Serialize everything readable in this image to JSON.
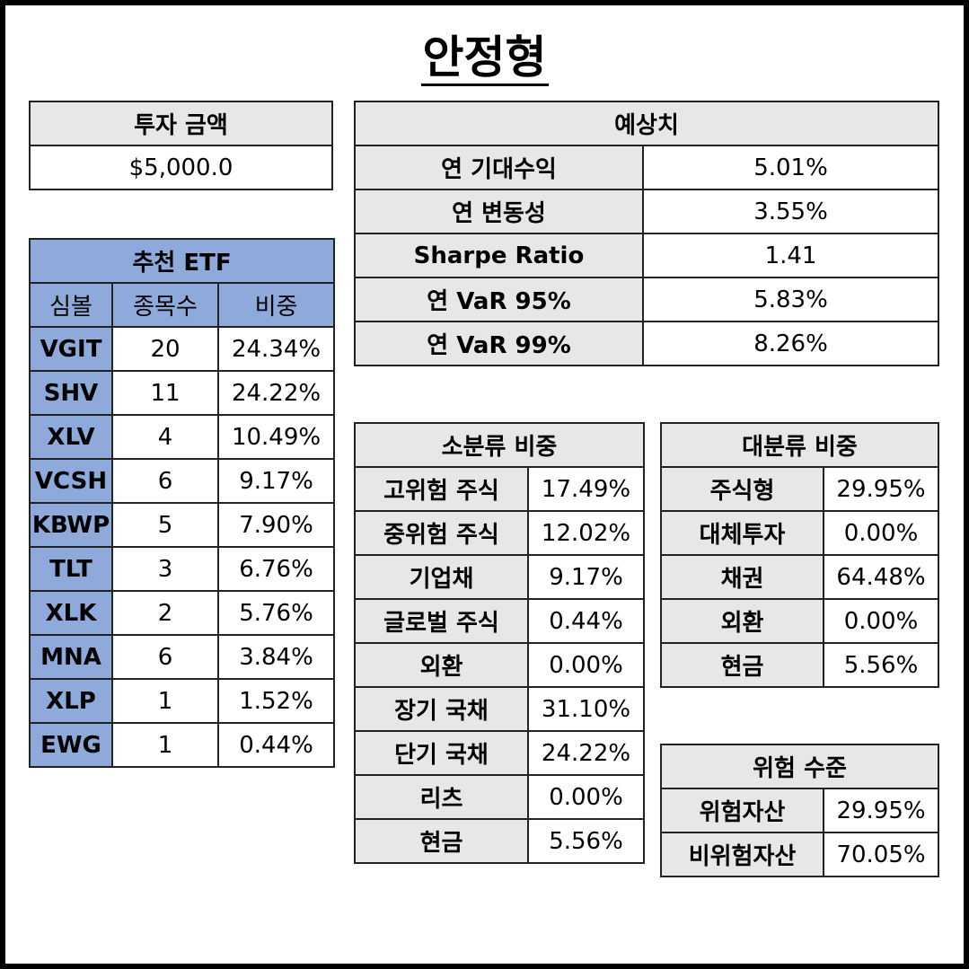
{
  "title": "안정형",
  "investment": {
    "header": "투자 금액",
    "value": "$5,000.0"
  },
  "etf": {
    "header": "추천 ETF",
    "columns": [
      "심볼",
      "종목수",
      "비중"
    ],
    "rows": [
      {
        "symbol": "VGIT",
        "count": "20",
        "weight": "24.34%"
      },
      {
        "symbol": "SHV",
        "count": "11",
        "weight": "24.22%"
      },
      {
        "symbol": "XLV",
        "count": "4",
        "weight": "10.49%"
      },
      {
        "symbol": "VCSH",
        "count": "6",
        "weight": "9.17%"
      },
      {
        "symbol": "KBWP",
        "count": "5",
        "weight": "7.90%"
      },
      {
        "symbol": "TLT",
        "count": "3",
        "weight": "6.76%"
      },
      {
        "symbol": "XLK",
        "count": "2",
        "weight": "5.76%"
      },
      {
        "symbol": "MNA",
        "count": "6",
        "weight": "3.84%"
      },
      {
        "symbol": "XLP",
        "count": "1",
        "weight": "1.52%"
      },
      {
        "symbol": "EWG",
        "count": "1",
        "weight": "0.44%"
      }
    ]
  },
  "expected": {
    "header": "예상치",
    "rows": [
      {
        "label": "연 기대수익",
        "value": "5.01%"
      },
      {
        "label": "연 변동성",
        "value": "3.55%"
      },
      {
        "label": "Sharpe Ratio",
        "value": "1.41"
      },
      {
        "label": "연 VaR 95%",
        "value": "5.83%"
      },
      {
        "label": "연 VaR 99%",
        "value": "8.26%"
      }
    ]
  },
  "sub_category": {
    "header": "소분류 비중",
    "rows": [
      {
        "label": "고위험 주식",
        "value": "17.49%"
      },
      {
        "label": "중위험 주식",
        "value": "12.02%"
      },
      {
        "label": "기업채",
        "value": "9.17%"
      },
      {
        "label": "글로벌 주식",
        "value": "0.44%"
      },
      {
        "label": "외환",
        "value": "0.00%"
      },
      {
        "label": "장기 국채",
        "value": "31.10%"
      },
      {
        "label": "단기 국채",
        "value": "24.22%"
      },
      {
        "label": "리츠",
        "value": "0.00%"
      },
      {
        "label": "현금",
        "value": "5.56%"
      }
    ]
  },
  "major_category": {
    "header": "대분류 비중",
    "rows": [
      {
        "label": "주식형",
        "value": "29.95%"
      },
      {
        "label": "대체투자",
        "value": "0.00%"
      },
      {
        "label": "채권",
        "value": "64.48%"
      },
      {
        "label": "외환",
        "value": "0.00%"
      },
      {
        "label": "현금",
        "value": "5.56%"
      }
    ]
  },
  "risk_level": {
    "header": "위험 수준",
    "rows": [
      {
        "label": "위험자산",
        "value": "29.95%"
      },
      {
        "label": "비위험자산",
        "value": "70.05%"
      }
    ]
  },
  "colors": {
    "header_gray": "#e7e7e7",
    "header_blue": "#8eaadb",
    "border": "#222222"
  }
}
